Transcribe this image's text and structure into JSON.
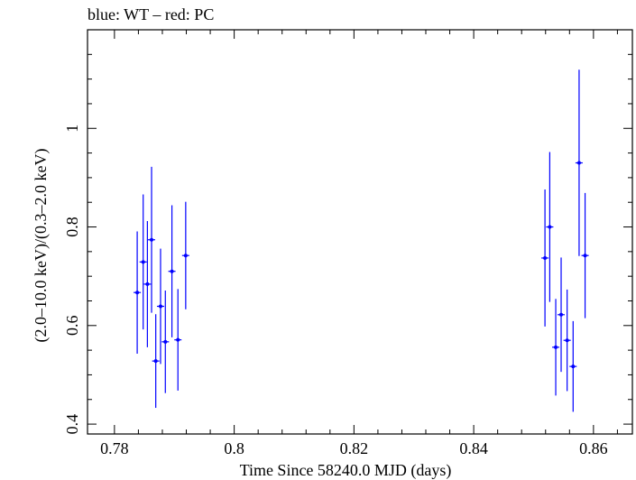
{
  "chart_data": {
    "type": "scatter",
    "title": "blue: WT – red: PC",
    "xlabel": "Time Since 58240.0 MJD (days)",
    "ylabel": "(2.0–10.0 keV)/(0.3–2.0 keV)",
    "xlim": [
      0.7755,
      0.8665
    ],
    "ylim": [
      0.38,
      1.2
    ],
    "x_ticks": [
      {
        "value": 0.78,
        "label": "0.78"
      },
      {
        "value": 0.8,
        "label": "0.8"
      },
      {
        "value": 0.82,
        "label": "0.82"
      },
      {
        "value": 0.84,
        "label": "0.84"
      },
      {
        "value": 0.86,
        "label": "0.86"
      }
    ],
    "y_ticks": [
      {
        "value": 0.4,
        "label": "0.4"
      },
      {
        "value": 0.6,
        "label": "0.6"
      },
      {
        "value": 0.8,
        "label": "0.8"
      },
      {
        "value": 1.0,
        "label": "1"
      }
    ],
    "grid": false,
    "series": [
      {
        "color": "#0000ff",
        "points": [
          {
            "x": 0.7838,
            "y": 0.667,
            "ylo": 0.543,
            "yhi": 0.791
          },
          {
            "x": 0.7848,
            "y": 0.729,
            "ylo": 0.592,
            "yhi": 0.866
          },
          {
            "x": 0.7855,
            "y": 0.684,
            "ylo": 0.556,
            "yhi": 0.812
          },
          {
            "x": 0.7862,
            "y": 0.774,
            "ylo": 0.626,
            "yhi": 0.922
          },
          {
            "x": 0.7869,
            "y": 0.528,
            "ylo": 0.433,
            "yhi": 0.623
          },
          {
            "x": 0.7877,
            "y": 0.639,
            "ylo": 0.522,
            "yhi": 0.756
          },
          {
            "x": 0.7885,
            "y": 0.567,
            "ylo": 0.463,
            "yhi": 0.671
          },
          {
            "x": 0.7896,
            "y": 0.71,
            "ylo": 0.576,
            "yhi": 0.844
          },
          {
            "x": 0.7906,
            "y": 0.571,
            "ylo": 0.468,
            "yhi": 0.674
          },
          {
            "x": 0.7919,
            "y": 0.742,
            "ylo": 0.633,
            "yhi": 0.851
          },
          {
            "x": 0.8519,
            "y": 0.737,
            "ylo": 0.598,
            "yhi": 0.876
          },
          {
            "x": 0.8527,
            "y": 0.8,
            "ylo": 0.648,
            "yhi": 0.952
          },
          {
            "x": 0.8537,
            "y": 0.556,
            "ylo": 0.458,
            "yhi": 0.654
          },
          {
            "x": 0.8546,
            "y": 0.622,
            "ylo": 0.506,
            "yhi": 0.738
          },
          {
            "x": 0.8556,
            "y": 0.57,
            "ylo": 0.467,
            "yhi": 0.673
          },
          {
            "x": 0.8566,
            "y": 0.517,
            "ylo": 0.425,
            "yhi": 0.609
          },
          {
            "x": 0.8576,
            "y": 0.93,
            "ylo": 0.741,
            "yhi": 1.119
          },
          {
            "x": 0.8586,
            "y": 0.742,
            "ylo": 0.615,
            "yhi": 0.869
          }
        ]
      }
    ]
  }
}
